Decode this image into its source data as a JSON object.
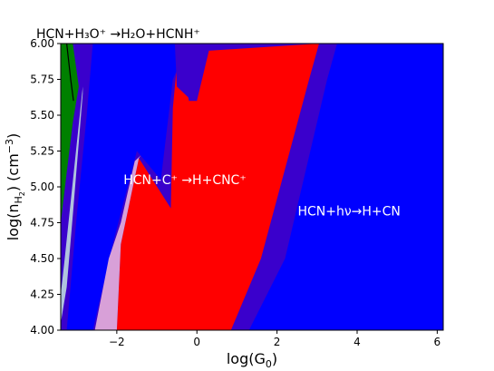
{
  "chart_data": {
    "type": "area",
    "title": "HCN+H₃O⁺ →H₂O+HCNH⁺",
    "xlabel": "log(G₀)",
    "ylabel": "log(nʜ₂) (cm⁻³)",
    "ylabel_main": "log(n",
    "ylabel_sub": "H",
    "ylabel_sub2": "2",
    "ylabel_tail": ") (cm",
    "ylabel_sup": "−3",
    "ylabel_end": ")",
    "xlabel_main": "log(G",
    "xlabel_sub": "0",
    "xlabel_end": ")",
    "xlim": [
      -3.4,
      6.15
    ],
    "ylim": [
      4.0,
      6.0
    ],
    "x_ticks": [
      -2,
      0,
      2,
      4,
      6
    ],
    "x_tick_labels": [
      "−2",
      "0",
      "2",
      "4",
      "6"
    ],
    "y_ticks": [
      4.0,
      4.25,
      4.5,
      4.75,
      5.0,
      5.25,
      5.5,
      5.75,
      6.0
    ],
    "y_tick_labels": [
      "4.00",
      "4.25",
      "4.50",
      "4.75",
      "5.00",
      "5.25",
      "5.50",
      "5.75",
      "6.00"
    ],
    "colors": {
      "background": "#0000ff",
      "transition": "#3a00cc",
      "red_region": "#ff0000",
      "green_region": "#008000",
      "pink_edge": "#d8a0d8",
      "light_edge": "#b0c4de"
    },
    "region_labels": [
      {
        "text": "HCN+C⁺ →H+CNC⁺",
        "x": -0.3,
        "y": 5.02
      },
      {
        "text": "HCN+hν→H+CN",
        "x": 3.8,
        "y": 4.8
      }
    ],
    "regions": [
      {
        "name": "transition-band",
        "color": "transition",
        "points": [
          [
            -2.6,
            4.0
          ],
          [
            -2.1,
            4.6
          ],
          [
            -1.5,
            5.25
          ],
          [
            -0.9,
            5.05
          ],
          [
            -0.6,
            5.75
          ],
          [
            -0.2,
            6.0
          ],
          [
            0.5,
            6.0
          ],
          [
            3.5,
            6.0
          ],
          [
            3.25,
            5.75
          ],
          [
            2.2,
            4.5
          ],
          [
            1.3,
            4.0
          ]
        ]
      },
      {
        "name": "red-region",
        "color": "red_region",
        "points": [
          [
            -2.0,
            4.0
          ],
          [
            -1.9,
            4.6
          ],
          [
            -1.45,
            5.2
          ],
          [
            -0.65,
            4.85
          ],
          [
            -0.6,
            5.55
          ],
          [
            -0.45,
            6.0
          ],
          [
            -0.2,
            5.6
          ],
          [
            0.0,
            5.6
          ],
          [
            0.3,
            5.95
          ],
          [
            3.05,
            6.0
          ],
          [
            2.8,
            5.75
          ],
          [
            1.6,
            4.5
          ],
          [
            0.85,
            4.0
          ]
        ]
      },
      {
        "name": "pink-edge",
        "color": "pink_edge",
        "points": [
          [
            -2.55,
            4.0
          ],
          [
            -2.2,
            4.5
          ],
          [
            -1.9,
            4.75
          ],
          [
            -1.55,
            5.18
          ],
          [
            -1.4,
            5.22
          ],
          [
            -1.45,
            5.2
          ],
          [
            -1.9,
            4.6
          ],
          [
            -2.0,
            4.0
          ]
        ]
      },
      {
        "name": "inner-purple-notch",
        "color": "transition",
        "points": [
          [
            -0.55,
            6.0
          ],
          [
            -0.5,
            5.7
          ],
          [
            -0.2,
            5.62
          ],
          [
            0.0,
            5.6
          ],
          [
            0.0,
            5.63
          ],
          [
            0.3,
            6.0
          ]
        ]
      },
      {
        "name": "left-purple-strip",
        "color": "transition",
        "points": [
          [
            -3.4,
            4.0
          ],
          [
            -3.4,
            6.0
          ],
          [
            -2.6,
            6.0
          ],
          [
            -2.75,
            5.5
          ],
          [
            -3.0,
            4.8
          ],
          [
            -3.25,
            4.0
          ]
        ]
      },
      {
        "name": "light-edge",
        "color": "light_edge",
        "points": [
          [
            -3.4,
            4.05
          ],
          [
            -3.25,
            4.3
          ],
          [
            -3.1,
            4.8
          ],
          [
            -2.85,
            5.65
          ],
          [
            -2.85,
            5.7
          ],
          [
            -3.3,
            4.5
          ],
          [
            -3.4,
            4.25
          ]
        ]
      },
      {
        "name": "green-region",
        "color": "green_region",
        "points": [
          [
            -3.4,
            4.75
          ],
          [
            -3.25,
            5.1
          ],
          [
            -3.1,
            5.45
          ],
          [
            -2.95,
            5.7
          ],
          [
            -3.1,
            6.0
          ],
          [
            -3.4,
            6.0
          ]
        ]
      }
    ],
    "black_line": [
      [
        -3.25,
        6.0
      ],
      [
        -3.15,
        5.75
      ],
      [
        -3.08,
        5.6
      ]
    ],
    "grid": false,
    "legend": "none"
  }
}
